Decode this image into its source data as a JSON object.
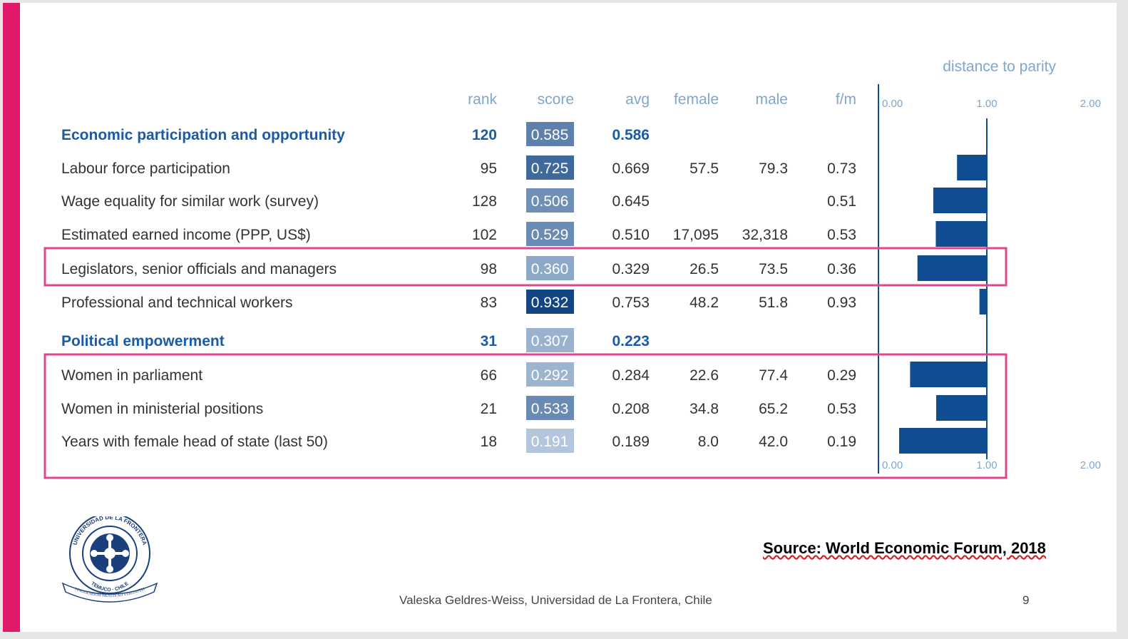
{
  "colors": {
    "accent": "#e0196a",
    "highlight_box": "#e0468e",
    "bar": "#0f4c92",
    "group_text": "#1a5aa6",
    "header_text": "#7ea6cf"
  },
  "chart_data": {
    "type": "table",
    "columns": [
      "rank",
      "score",
      "avg",
      "female",
      "male",
      "f/m"
    ],
    "distance_title": "distance to parity",
    "distance_axis": {
      "min": 0,
      "max": 2,
      "ticks": [
        "0.00",
        "1.00",
        "2.00"
      ]
    },
    "rows": [
      {
        "label": "Economic participation and opportunity",
        "group": true,
        "rank": "120",
        "score": "0.585",
        "avg": "0.586",
        "female": "",
        "male": "",
        "fm": "",
        "fm_value": null,
        "highlight": false
      },
      {
        "label": "Labour force participation",
        "group": false,
        "rank": "95",
        "score": "0.725",
        "avg": "0.669",
        "female": "57.5",
        "male": "79.3",
        "fm": "0.73",
        "fm_value": 0.725,
        "highlight": false
      },
      {
        "label": "Wage equality for similar work (survey)",
        "group": false,
        "rank": "128",
        "score": "0.506",
        "avg": "0.645",
        "female": "",
        "male": "",
        "fm": "0.51",
        "fm_value": 0.506,
        "highlight": false
      },
      {
        "label": "Estimated earned income (PPP, US$)",
        "group": false,
        "rank": "102",
        "score": "0.529",
        "avg": "0.510",
        "female": "17,095",
        "male": "32,318",
        "fm": "0.53",
        "fm_value": 0.529,
        "highlight": false
      },
      {
        "label": "Legislators, senior officials and managers",
        "group": false,
        "rank": "98",
        "score": "0.360",
        "avg": "0.329",
        "female": "26.5",
        "male": "73.5",
        "fm": "0.36",
        "fm_value": 0.36,
        "highlight": true
      },
      {
        "label": "Professional and technical workers",
        "group": false,
        "rank": "83",
        "score": "0.932",
        "avg": "0.753",
        "female": "48.2",
        "male": "51.8",
        "fm": "0.93",
        "fm_value": 0.932,
        "highlight": false
      },
      {
        "label": "Political empowerment",
        "group": true,
        "rank": "31",
        "score": "0.307",
        "avg": "0.223",
        "female": "",
        "male": "",
        "fm": "",
        "fm_value": null,
        "highlight": false
      },
      {
        "label": "Women in parliament",
        "group": false,
        "rank": "66",
        "score": "0.292",
        "avg": "0.284",
        "female": "22.6",
        "male": "77.4",
        "fm": "0.29",
        "fm_value": 0.292,
        "highlight": true
      },
      {
        "label": "Women in ministerial positions",
        "group": false,
        "rank": "21",
        "score": "0.533",
        "avg": "0.208",
        "female": "34.8",
        "male": "65.2",
        "fm": "0.53",
        "fm_value": 0.533,
        "highlight": true
      },
      {
        "label": "Years with female head of state (last 50)",
        "group": false,
        "rank": "18",
        "score": "0.191",
        "avg": "0.189",
        "female": "8.0",
        "male": "42.0",
        "fm": "0.19",
        "fm_value": 0.191,
        "highlight": true
      }
    ]
  },
  "source": "Source: World Economic Forum, 2018",
  "footer": "Valeska Geldres-Weiss, Universidad de La Frontera, Chile",
  "page_number": "9",
  "logo": {
    "top_text": "UNIVERSIDAD DE LA FRONTERA",
    "bottom_text": "TEMUCO · CHILE",
    "ribbon_text": "FINGERARIUM MENTIS AD VERITATEM"
  }
}
